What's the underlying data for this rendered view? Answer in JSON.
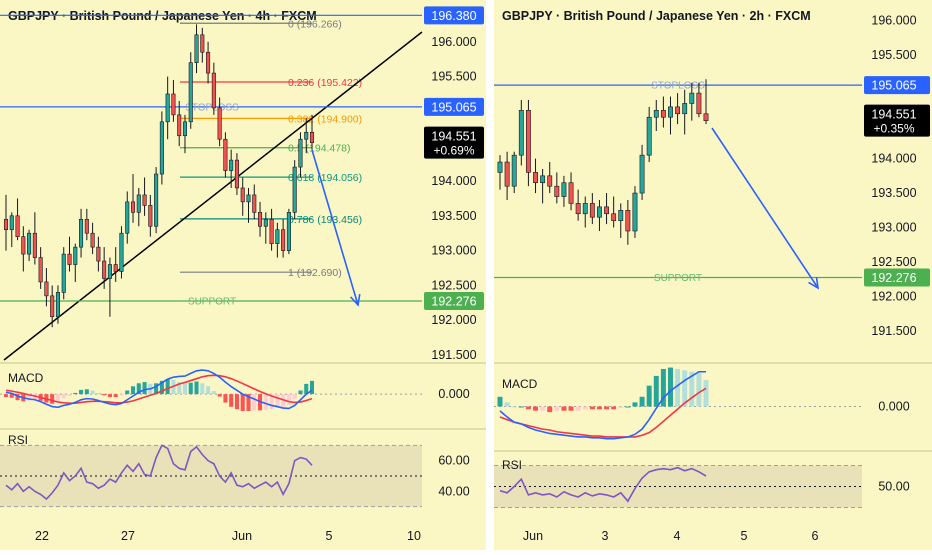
{
  "colors": {
    "background": "#fbf7c4",
    "candle_up": "#26a69a",
    "candle_down": "#ef5350",
    "level_line": "#2962ff",
    "support_line": "#4caf50",
    "support_label_bg": "#4caf50",
    "price_label_bg": "#2962ff",
    "current_label_bg": "#000000",
    "macd_line": "#2962ff",
    "signal_line": "#f23645",
    "rsi_line": "#7e57c2",
    "fib_zero": "#787b86",
    "fib_236": "#f23645",
    "fib_382": "#ff9800",
    "fib_5": "#4caf50",
    "fib_618": "#089981",
    "fib_786": "#00897b",
    "fib_1": "#787b86",
    "arrow": "#2962ff",
    "trendline": "#000000"
  },
  "chart_data": [
    {
      "type": "candlestick",
      "title": "GBPJPY · British Pound / Japanese Yen · 4h · FXCM",
      "ylim": [
        191.4,
        196.6
      ],
      "y_ticks": [
        "196.500",
        "196.000",
        "195.500",
        "195.000",
        "194.500",
        "194.000",
        "193.500",
        "193.000",
        "192.500",
        "192.000",
        "191.500"
      ],
      "x_ticks": [
        "22",
        "27",
        "Jun",
        "5",
        "10"
      ],
      "current_price": "194.551",
      "change_pct": "+0.69%",
      "levels": [
        {
          "label": "STOPLOSS",
          "value": 195.065,
          "price_text": "195.065",
          "kind": "stoploss"
        },
        {
          "label": "SUPPORT",
          "value": 192.276,
          "price_text": "192.276",
          "kind": "support"
        },
        {
          "label": "",
          "value": 196.38,
          "price_text": "196.380",
          "kind": "top"
        }
      ],
      "fibonacci": [
        {
          "text": "0 (196.266)",
          "value": 196.266,
          "color": "#787b86"
        },
        {
          "text": "0.236 (195.422)",
          "value": 195.422,
          "color": "#f23645"
        },
        {
          "text": "0.382 (194.900)",
          "value": 194.9,
          "color": "#ff9800"
        },
        {
          "text": "0.5 (194.478)",
          "value": 194.478,
          "color": "#4caf50"
        },
        {
          "text": "0.618 (194.056)",
          "value": 194.056,
          "color": "#089981"
        },
        {
          "text": "0.786 (193.456)",
          "value": 193.456,
          "color": "#00897b"
        },
        {
          "text": "1 (192.690)",
          "value": 192.69,
          "color": "#787b86"
        }
      ],
      "candles": [
        [
          193.45,
          193.8,
          193.0,
          193.3
        ],
        [
          193.3,
          193.55,
          193.05,
          193.5
        ],
        [
          193.5,
          193.75,
          193.15,
          193.2
        ],
        [
          193.2,
          193.35,
          192.7,
          192.95
        ],
        [
          192.95,
          193.3,
          192.85,
          193.25
        ],
        [
          193.25,
          193.55,
          192.8,
          192.9
        ],
        [
          192.9,
          193.05,
          192.45,
          192.55
        ],
        [
          192.55,
          192.75,
          192.2,
          192.35
        ],
        [
          192.35,
          192.5,
          191.9,
          192.05
        ],
        [
          192.05,
          192.5,
          191.95,
          192.4
        ],
        [
          192.4,
          193.05,
          192.3,
          192.95
        ],
        [
          192.95,
          193.2,
          192.7,
          192.8
        ],
        [
          192.8,
          193.1,
          192.55,
          193.05
        ],
        [
          193.05,
          193.6,
          192.9,
          193.45
        ],
        [
          193.45,
          193.6,
          193.15,
          193.25
        ],
        [
          193.25,
          193.4,
          192.95,
          193.05
        ],
        [
          193.05,
          193.2,
          192.7,
          192.85
        ],
        [
          192.85,
          193.05,
          192.45,
          192.6
        ],
        [
          192.6,
          192.9,
          192.05,
          192.8
        ],
        [
          192.8,
          193.05,
          192.55,
          192.7
        ],
        [
          192.7,
          193.35,
          192.6,
          193.25
        ],
        [
          193.25,
          193.85,
          193.1,
          193.7
        ],
        [
          193.7,
          194.1,
          193.4,
          193.55
        ],
        [
          193.55,
          193.9,
          193.35,
          193.8
        ],
        [
          193.8,
          194.05,
          193.5,
          193.65
        ],
        [
          193.65,
          193.8,
          193.2,
          193.35
        ],
        [
          193.35,
          194.2,
          193.25,
          194.1
        ],
        [
          194.1,
          195.0,
          193.95,
          194.85
        ],
        [
          194.85,
          195.5,
          194.6,
          195.25
        ],
        [
          195.25,
          195.45,
          194.85,
          194.95
        ],
        [
          194.95,
          195.15,
          194.5,
          194.65
        ],
        [
          194.65,
          194.95,
          194.4,
          194.85
        ],
        [
          194.85,
          195.85,
          194.75,
          195.7
        ],
        [
          195.7,
          196.25,
          195.55,
          196.1
        ],
        [
          196.1,
          196.2,
          195.7,
          195.85
        ],
        [
          195.85,
          196.0,
          195.4,
          195.55
        ],
        [
          195.55,
          195.7,
          194.95,
          195.05
        ],
        [
          195.05,
          195.2,
          194.5,
          194.6
        ],
        [
          194.6,
          194.7,
          194.05,
          194.15
        ],
        [
          194.15,
          194.45,
          193.9,
          194.3
        ],
        [
          194.3,
          194.4,
          193.8,
          193.9
        ],
        [
          193.9,
          194.05,
          193.5,
          193.7
        ],
        [
          193.7,
          193.9,
          193.4,
          193.8
        ],
        [
          193.8,
          193.95,
          193.45,
          193.55
        ],
        [
          193.55,
          193.7,
          193.2,
          193.35
        ],
        [
          193.35,
          193.55,
          193.1,
          193.45
        ],
        [
          193.45,
          193.6,
          193.0,
          193.1
        ],
        [
          193.1,
          193.4,
          192.9,
          193.3
        ],
        [
          193.3,
          193.45,
          192.9,
          193.0
        ],
        [
          193.0,
          193.6,
          192.95,
          193.55
        ],
        [
          193.55,
          194.3,
          193.45,
          194.2
        ],
        [
          194.2,
          194.7,
          194.05,
          194.6
        ],
        [
          194.6,
          194.9,
          194.4,
          194.7
        ],
        [
          194.7,
          194.95,
          194.45,
          194.55
        ]
      ],
      "macd": {
        "label": "MACD",
        "ylim": [
          -0.9,
          0.8
        ],
        "y_ticks": [
          "0.000"
        ],
        "macd_line": [
          0.05,
          0.02,
          -0.05,
          -0.1,
          -0.13,
          -0.15,
          -0.2,
          -0.27,
          -0.33,
          -0.35,
          -0.3,
          -0.27,
          -0.22,
          -0.15,
          -0.12,
          -0.13,
          -0.17,
          -0.22,
          -0.26,
          -0.28,
          -0.25,
          -0.15,
          -0.05,
          0.05,
          0.12,
          0.14,
          0.2,
          0.3,
          0.4,
          0.45,
          0.47,
          0.48,
          0.55,
          0.62,
          0.64,
          0.62,
          0.55,
          0.45,
          0.32,
          0.2,
          0.1,
          0.0,
          -0.07,
          -0.13,
          -0.2,
          -0.25,
          -0.3,
          -0.33,
          -0.37,
          -0.38,
          -0.3,
          -0.15,
          0.0,
          0.1
        ],
        "signal_line": [
          0.1,
          0.08,
          0.05,
          0.02,
          -0.02,
          -0.05,
          -0.09,
          -0.13,
          -0.17,
          -0.21,
          -0.23,
          -0.24,
          -0.24,
          -0.22,
          -0.2,
          -0.19,
          -0.19,
          -0.2,
          -0.21,
          -0.23,
          -0.23,
          -0.21,
          -0.18,
          -0.13,
          -0.08,
          -0.03,
          0.02,
          0.08,
          0.15,
          0.21,
          0.27,
          0.31,
          0.36,
          0.41,
          0.46,
          0.49,
          0.5,
          0.49,
          0.46,
          0.41,
          0.35,
          0.28,
          0.21,
          0.14,
          0.07,
          0.01,
          -0.05,
          -0.1,
          -0.15,
          -0.2,
          -0.22,
          -0.21,
          -0.17,
          -0.12
        ]
      },
      "rsi": {
        "label": "RSI",
        "ylim": [
          20,
          80
        ],
        "band": [
          30,
          70
        ],
        "mid": 50,
        "y_ticks": [
          "60.00",
          "40.00"
        ],
        "values": [
          44,
          41,
          45,
          40,
          43,
          40,
          38,
          35,
          39,
          44,
          52,
          47,
          50,
          55,
          46,
          45,
          42,
          44,
          48,
          46,
          52,
          57,
          53,
          58,
          51,
          50,
          62,
          70,
          68,
          58,
          55,
          54,
          66,
          69,
          64,
          60,
          58,
          50,
          46,
          52,
          44,
          43,
          45,
          42,
          44,
          46,
          43,
          46,
          38,
          45,
          60,
          62,
          61,
          57
        ]
      }
    },
    {
      "type": "candlestick",
      "title": "GBPJPY · British Pound / Japanese Yen · 2h · FXCM",
      "ylim": [
        191.05,
        196.3
      ],
      "y_ticks": [
        "196.000",
        "195.500",
        "195.000",
        "194.500",
        "194.000",
        "193.500",
        "193.000",
        "192.500",
        "192.000",
        "191.500"
      ],
      "x_ticks": [
        "Jun",
        "3",
        "4",
        "5",
        "6"
      ],
      "current_price": "194.551",
      "change_pct": "+0.35%",
      "levels": [
        {
          "label": "STOPLOSS",
          "value": 195.065,
          "price_text": "195.065",
          "kind": "stoploss"
        },
        {
          "label": "SUPPORT",
          "value": 192.276,
          "price_text": "192.276",
          "kind": "support"
        }
      ],
      "candles": [
        [
          193.8,
          194.05,
          193.55,
          193.95
        ],
        [
          193.95,
          194.1,
          193.4,
          193.6
        ],
        [
          193.6,
          194.1,
          193.5,
          194.05
        ],
        [
          194.05,
          194.85,
          193.9,
          194.7
        ],
        [
          194.7,
          194.85,
          193.6,
          193.8
        ],
        [
          193.8,
          194.0,
          193.5,
          193.65
        ],
        [
          193.65,
          193.85,
          193.35,
          193.75
        ],
        [
          193.75,
          193.95,
          193.5,
          193.6
        ],
        [
          193.6,
          193.8,
          193.35,
          193.45
        ],
        [
          193.45,
          193.75,
          193.3,
          193.65
        ],
        [
          193.65,
          193.8,
          193.25,
          193.35
        ],
        [
          193.35,
          193.55,
          193.1,
          193.2
        ],
        [
          193.2,
          193.45,
          193.0,
          193.35
        ],
        [
          193.35,
          193.5,
          193.05,
          193.15
        ],
        [
          193.15,
          193.4,
          192.95,
          193.3
        ],
        [
          193.3,
          193.5,
          193.05,
          193.2
        ],
        [
          193.2,
          193.45,
          193.0,
          193.1
        ],
        [
          193.1,
          193.35,
          192.85,
          193.25
        ],
        [
          193.25,
          193.4,
          192.75,
          192.95
        ],
        [
          192.95,
          193.6,
          192.85,
          193.5
        ],
        [
          193.5,
          194.2,
          193.4,
          194.05
        ],
        [
          194.05,
          194.75,
          193.95,
          194.6
        ],
        [
          194.6,
          194.85,
          194.4,
          194.7
        ],
        [
          194.7,
          194.9,
          194.45,
          194.6
        ],
        [
          194.6,
          194.9,
          194.35,
          194.75
        ],
        [
          194.75,
          194.95,
          194.5,
          194.65
        ],
        [
          194.65,
          195.0,
          194.35,
          194.8
        ],
        [
          194.8,
          195.1,
          194.55,
          194.95
        ],
        [
          194.95,
          195.1,
          194.6,
          194.65
        ],
        [
          194.65,
          195.15,
          194.5,
          194.55
        ]
      ],
      "macd": {
        "label": "MACD",
        "ylim": [
          -0.5,
          0.42
        ],
        "y_ticks": [
          "0.000"
        ],
        "macd_line": [
          -0.05,
          -0.12,
          -0.18,
          -0.2,
          -0.24,
          -0.27,
          -0.29,
          -0.31,
          -0.32,
          -0.33,
          -0.34,
          -0.35,
          -0.35,
          -0.36,
          -0.36,
          -0.37,
          -0.37,
          -0.36,
          -0.35,
          -0.32,
          -0.26,
          -0.15,
          -0.02,
          0.1,
          0.18,
          0.24,
          0.3,
          0.35,
          0.4,
          0.4
        ],
        "signal_line": [
          -0.12,
          -0.15,
          -0.18,
          -0.2,
          -0.22,
          -0.24,
          -0.26,
          -0.27,
          -0.29,
          -0.3,
          -0.31,
          -0.32,
          -0.33,
          -0.34,
          -0.34,
          -0.35,
          -0.35,
          -0.35,
          -0.35,
          -0.35,
          -0.33,
          -0.3,
          -0.24,
          -0.17,
          -0.1,
          -0.03,
          0.04,
          0.1,
          0.16,
          0.21
        ]
      },
      "rsi": {
        "label": "RSI",
        "ylim": [
          20,
          80
        ],
        "band": [
          30,
          70
        ],
        "mid": 50,
        "y_ticks": [
          "50.00"
        ],
        "values": [
          46,
          44,
          50,
          57,
          42,
          44,
          42,
          43,
          40,
          45,
          42,
          40,
          44,
          41,
          43,
          42,
          40,
          44,
          36,
          48,
          58,
          64,
          66,
          67,
          66,
          68,
          65,
          67,
          64,
          60
        ]
      }
    }
  ]
}
